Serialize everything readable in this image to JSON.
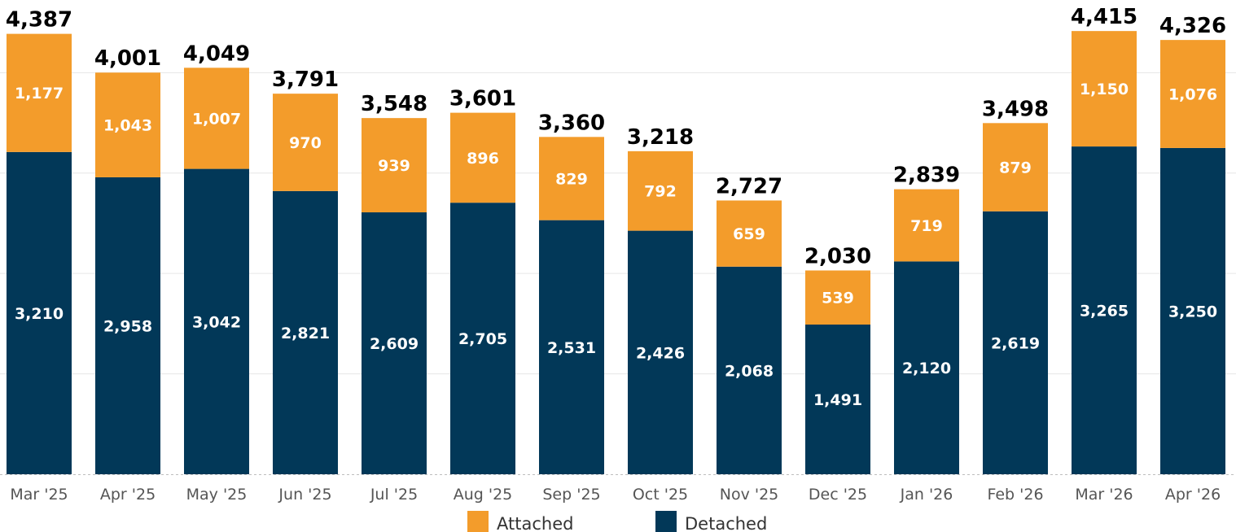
{
  "chart_data": {
    "type": "bar",
    "stacked": true,
    "categories": [
      "Mar '25",
      "Apr '25",
      "May '25",
      "Jun '25",
      "Jul '25",
      "Aug '25",
      "Sep '25",
      "Oct '25",
      "Nov '25",
      "Dec '25",
      "Jan '26",
      "Feb '26",
      "Mar '26",
      "Apr '26"
    ],
    "series": [
      {
        "name": "Detached",
        "color": "#023858",
        "values": [
          3210,
          2958,
          3042,
          2821,
          2609,
          2705,
          2531,
          2426,
          2068,
          1491,
          2120,
          2619,
          3265,
          3250
        ]
      },
      {
        "name": "Attached",
        "color": "#F39C2B",
        "values": [
          1177,
          1043,
          1007,
          970,
          939,
          896,
          829,
          792,
          659,
          539,
          719,
          879,
          1150,
          1076
        ]
      }
    ],
    "totals": [
      "4,387",
      "4,001",
      "4,049",
      "3,791",
      "3,548",
      "3,601",
      "3,360",
      "3,218",
      "2,727",
      "2,030",
      "2,839",
      "3,498",
      "4,415",
      "4,326"
    ],
    "ylim": [
      0,
      4400
    ],
    "grid": true,
    "legend": {
      "position": "bottom",
      "entries": [
        "Attached",
        "Detached"
      ]
    }
  }
}
